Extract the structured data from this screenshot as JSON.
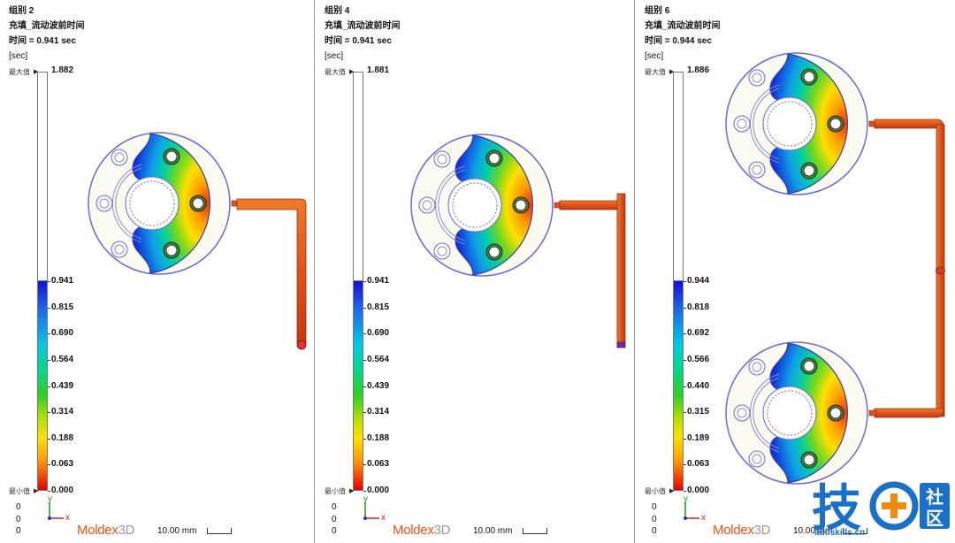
{
  "panels": [
    {
      "group": "组别 2",
      "result": "充填_流动波前时间",
      "time": "时间 = 0.941 sec",
      "unit": "[sec]",
      "max_label": "最大值",
      "max_value": "1.882",
      "min_label": "最小值",
      "ticks": [
        "0.941",
        "0.815",
        "0.690",
        "0.564",
        "0.439",
        "0.314",
        "0.188",
        "0.063",
        "0.000"
      ],
      "coords": [
        "0",
        "0",
        "0"
      ],
      "axis_y": "y",
      "axis_x": "x",
      "logo_a": "Moldex",
      "logo_b": "3D",
      "scale": "10.00 mm"
    },
    {
      "group": "组别 4",
      "result": "充填_流动波前时间",
      "time": "时间 = 0.941 sec",
      "unit": "[sec]",
      "max_label": "最大值",
      "max_value": "1.881",
      "min_label": "最小值",
      "ticks": [
        "0.941",
        "0.815",
        "0.690",
        "0.564",
        "0.439",
        "0.314",
        "0.188",
        "0.063",
        "0.000"
      ],
      "coords": [
        "0",
        "0",
        "0"
      ],
      "axis_y": "y",
      "axis_x": "x",
      "logo_a": "Moldex",
      "logo_b": "3D",
      "scale": "10.00 mm"
    },
    {
      "group": "组别 6",
      "result": "充填_流动波前时间",
      "time": "时间 = 0.944 sec",
      "unit": "[sec]",
      "max_label": "最大值",
      "max_value": "1.886",
      "min_label": "最小值",
      "ticks": [
        "0.944",
        "0.818",
        "0.692",
        "0.566",
        "0.440",
        "0.315",
        "0.189",
        "0.063",
        "0.000"
      ],
      "coords": [
        "0",
        "0",
        "0"
      ],
      "axis_y": "y",
      "axis_x": "x",
      "logo_a": "Moldex",
      "logo_b": "3D",
      "scale": "10.00 mm"
    }
  ],
  "watermark": {
    "glyph": "技",
    "side_top": "社",
    "side_bottom": "区",
    "site": "adoskills.cn"
  },
  "colors": {
    "runner": "#e0521a",
    "outline": "#6a6ad8",
    "watermark_blue": "#1a6fc8",
    "watermark_orange": "#f08a10"
  }
}
